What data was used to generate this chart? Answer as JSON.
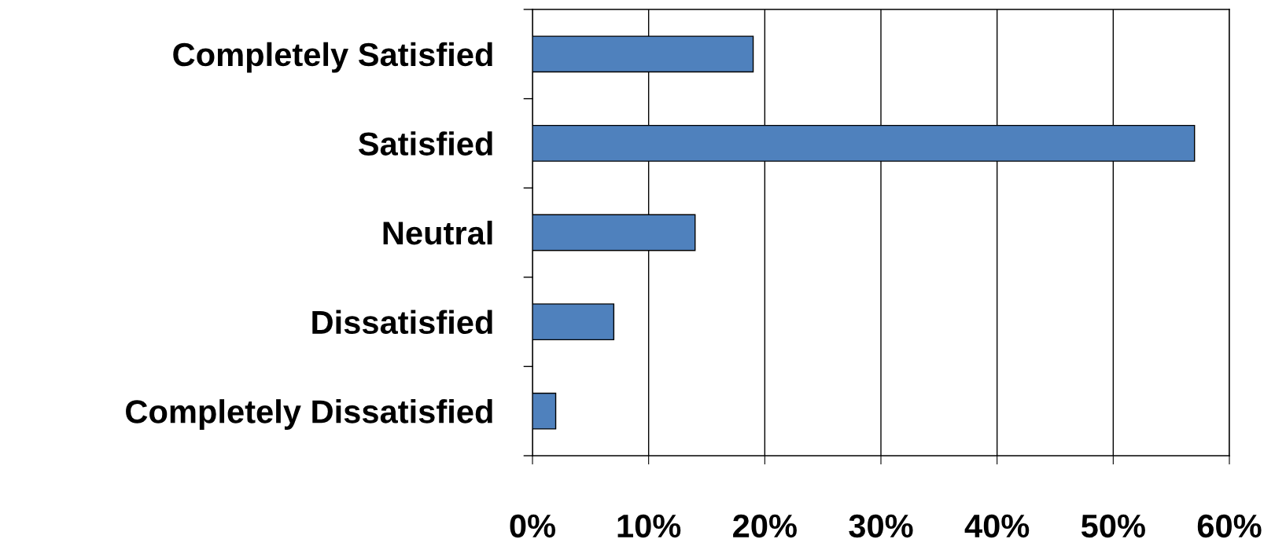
{
  "chart_data": {
    "type": "bar",
    "orientation": "horizontal",
    "categories": [
      "Completely Satisfied",
      "Satisfied",
      "Neutral",
      "Dissatisfied",
      "Completely Dissatisfied"
    ],
    "values": [
      19,
      57,
      14,
      7,
      2
    ],
    "color": "#4f81bd",
    "xlim": [
      0,
      60
    ],
    "xticks": [
      {
        "value": 0,
        "label": "0%"
      },
      {
        "value": 10,
        "label": "10%"
      },
      {
        "value": 20,
        "label": "20%"
      },
      {
        "value": 30,
        "label": "30%"
      },
      {
        "value": 40,
        "label": "40%"
      },
      {
        "value": 50,
        "label": "50%"
      },
      {
        "value": 60,
        "label": "60%"
      }
    ],
    "grid": "x"
  }
}
